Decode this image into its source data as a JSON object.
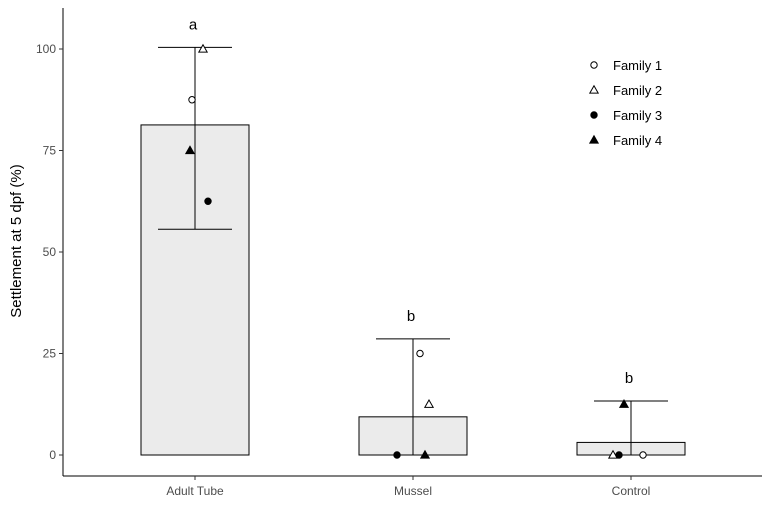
{
  "chart_data": {
    "type": "bar",
    "ylabel": "Settlement at 5 dpf (%)",
    "xlabel": "",
    "ylim": [
      -8,
      110
    ],
    "yticks": [
      0,
      25,
      50,
      75,
      100
    ],
    "grid": false,
    "legend_position": "top-right",
    "categories": [
      "Adult Tube",
      "Mussel",
      "Control"
    ],
    "bar_fill": "#ebebeb",
    "bars": [
      {
        "category": "Adult Tube",
        "mean": 81.3,
        "err_low": 55.6,
        "err_high": 100.4,
        "letter": "a"
      },
      {
        "category": "Mussel",
        "mean": 9.4,
        "err_low": 0,
        "err_high": 28.6,
        "letter": "b"
      },
      {
        "category": "Control",
        "mean": 3.1,
        "err_low": 0,
        "err_high": 13.3,
        "letter": "b"
      }
    ],
    "series": [
      {
        "name": "Family 1",
        "marker": "open-circle",
        "values": [
          87.5,
          25,
          0
        ]
      },
      {
        "name": "Family 2",
        "marker": "open-triangle",
        "values": [
          100,
          12.5,
          0
        ]
      },
      {
        "name": "Family 3",
        "marker": "filled-circle",
        "values": [
          62.5,
          0,
          0
        ]
      },
      {
        "name": "Family 4",
        "marker": "filled-triangle",
        "values": [
          75,
          0,
          12.5
        ]
      }
    ]
  }
}
